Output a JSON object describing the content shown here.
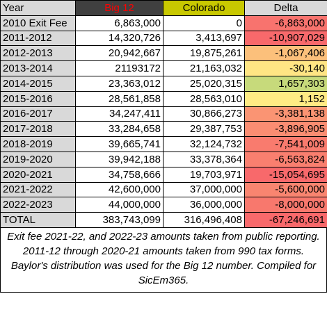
{
  "table": {
    "header": [
      "Year",
      "Big 12",
      "Colorado",
      "Delta"
    ],
    "header_colors": [
      "#d9d9d9",
      "#404040",
      "#c8c800",
      "#d9d9d9"
    ],
    "header_text_colors": [
      "#000000",
      "#ff0000",
      "#000000",
      "#000000"
    ],
    "rows": [
      [
        "2010 Exit Fee",
        "6,863,000",
        "0",
        "-6,863,000"
      ],
      [
        "2011-2012",
        "14,320,726",
        "3,413,697",
        "-10,907,029"
      ],
      [
        "2012-2013",
        "20,942,667",
        "19,875,261",
        "-1,067,406"
      ],
      [
        "2013-2014",
        "21193172",
        "21,163,032",
        "-30,140"
      ],
      [
        "2014-2015",
        "23,363,012",
        "25,020,315",
        "1,657,303"
      ],
      [
        "2015-2016",
        "28,561,858",
        "28,563,010",
        "1,152"
      ],
      [
        "2016-2017",
        "34,247,411",
        "30,866,273",
        "-3,381,138"
      ],
      [
        "2017-2018",
        "33,284,658",
        "29,387,753",
        "-3,896,905"
      ],
      [
        "2018-2019",
        "39,665,741",
        "32,124,732",
        "-7,541,009"
      ],
      [
        "2019-2020",
        "39,942,188",
        "33,378,364",
        "-6,563,824"
      ],
      [
        "2020-2021",
        "34,758,666",
        "19,703,971",
        "-15,054,695"
      ],
      [
        "2021-2022",
        "42,600,000",
        "37,000,000",
        "-5,600,000"
      ],
      [
        "2022-2023",
        "44,000,000",
        "36,000,000",
        "-8,000,000"
      ],
      [
        "TOTAL",
        "383,743,099",
        "316,496,408",
        "-67,246,691"
      ]
    ],
    "delta_colors": [
      "#f8736e",
      "#f8696b",
      "#fcc07b",
      "#ffe584",
      "#c7da7b",
      "#ffeb84",
      "#fa9473",
      "#fa8d72",
      "#f97b6e",
      "#f97f6f",
      "#f8696b",
      "#f98570",
      "#f8786d",
      "#f8696b"
    ],
    "note": "Exit fee 2021-22, and 2022-23 amounts taken from public reporting.  2011-12 through 2020-21 amounts taken from 990 tax forms.  Baylor's distribution was used for the Big 12 number.  Compiled for SicEm365."
  }
}
